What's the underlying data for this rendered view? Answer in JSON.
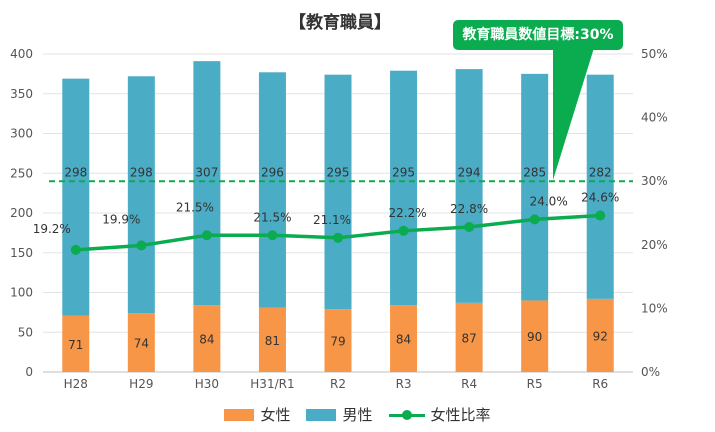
{
  "chart_data": {
    "type": "bar",
    "title": "【教育職員】",
    "categories": [
      "H28",
      "H29",
      "H30",
      "H31/R1",
      "R2",
      "R3",
      "R4",
      "R5",
      "R6"
    ],
    "series": [
      {
        "name": "女性",
        "type": "bar",
        "axis": "left",
        "color": "#f79646",
        "values": [
          71,
          74,
          84,
          81,
          79,
          84,
          87,
          90,
          92
        ]
      },
      {
        "name": "男性",
        "type": "bar",
        "axis": "left",
        "color": "#4bacc6",
        "values": [
          298,
          298,
          307,
          296,
          295,
          295,
          294,
          285,
          282
        ]
      },
      {
        "name": "女性比率",
        "type": "line",
        "axis": "right",
        "color": "#0bab4f",
        "values": [
          19.2,
          19.9,
          21.5,
          21.5,
          21.1,
          22.2,
          22.8,
          24.0,
          24.6
        ],
        "labels": [
          "19.2%",
          "19.9%",
          "21.5%",
          "21.5%",
          "21.1%",
          "22.2%",
          "22.8%",
          "24.0%",
          "24.6%"
        ]
      }
    ],
    "target": {
      "label": "教育職員数値目標:30%",
      "value": 30
    },
    "y_left": {
      "min": 0,
      "max": 400,
      "ticks": [
        "0",
        "50",
        "100",
        "150",
        "200",
        "250",
        "300",
        "350",
        "400"
      ]
    },
    "y_right": {
      "min": 0,
      "max": 50,
      "ticks": [
        "0%",
        "10%",
        "20%",
        "30%",
        "40%",
        "50%"
      ]
    },
    "grid": true,
    "legend": "bottom"
  },
  "colors": {
    "female": "#f79646",
    "male": "#4bacc6",
    "ratio": "#0bab4f",
    "target": "#0bab4f"
  }
}
